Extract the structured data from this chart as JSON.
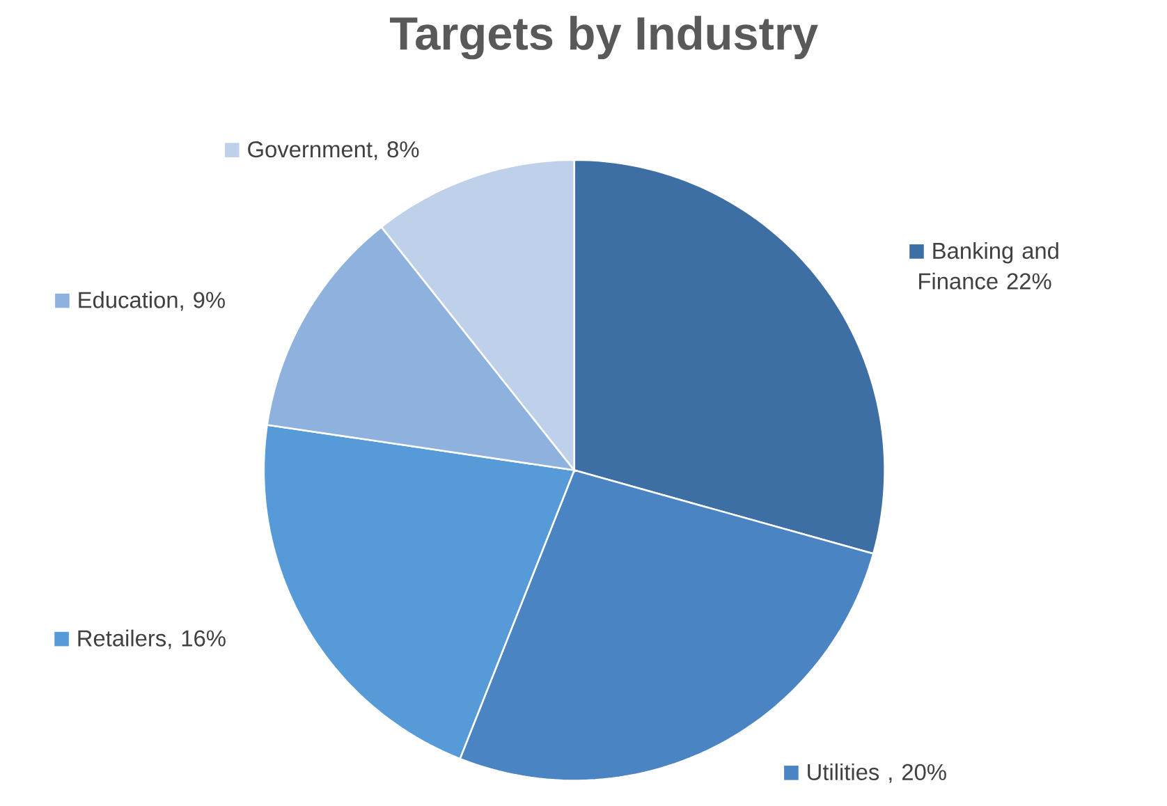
{
  "chart_data": {
    "type": "pie",
    "title": "Targets by Industry",
    "categories": [
      "Banking and Finance 22%",
      "Utilities , 20%",
      "Retailers, 16%",
      "Education, 9%",
      "Government, 8%"
    ],
    "values": [
      22,
      20,
      16,
      9,
      8
    ],
    "colors": [
      "#3d6fa5",
      "#4a84c2",
      "#579ad8",
      "#8eb1dd",
      "#bfd0ea"
    ],
    "legend": "right"
  }
}
